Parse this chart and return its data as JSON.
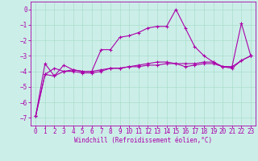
{
  "xlabel": "Windchill (Refroidissement éolien,°C)",
  "background_color": "#cceee8",
  "grid_color": "#aaddcc",
  "line_color": "#aa00aa",
  "x_hours": [
    0,
    1,
    2,
    3,
    4,
    5,
    6,
    7,
    8,
    9,
    10,
    11,
    12,
    13,
    14,
    15,
    16,
    17,
    18,
    19,
    20,
    21,
    22,
    23
  ],
  "series1": [
    -6.9,
    -3.5,
    -4.3,
    -3.6,
    -3.9,
    -4.0,
    -4.0,
    -2.6,
    -2.6,
    -1.8,
    -1.7,
    -1.5,
    -1.2,
    -1.1,
    -1.1,
    0.0,
    -1.2,
    -2.4,
    -3.0,
    -3.4,
    -3.7,
    -3.7,
    -0.9,
    -3.0
  ],
  "series2": [
    -6.9,
    -4.2,
    -3.8,
    -4.0,
    -3.9,
    -4.0,
    -4.0,
    -3.9,
    -3.8,
    -3.8,
    -3.7,
    -3.7,
    -3.6,
    -3.6,
    -3.5,
    -3.5,
    -3.5,
    -3.5,
    -3.4,
    -3.4,
    -3.7,
    -3.7,
    -3.3,
    -3.0
  ],
  "series3": [
    -6.9,
    -4.2,
    -4.3,
    -4.0,
    -4.0,
    -4.1,
    -4.1,
    -4.0,
    -3.8,
    -3.8,
    -3.7,
    -3.6,
    -3.5,
    -3.4,
    -3.4,
    -3.5,
    -3.7,
    -3.6,
    -3.5,
    -3.5,
    -3.7,
    -3.8,
    -3.3,
    -3.0
  ],
  "ylim": [
    -7.5,
    0.5
  ],
  "yticks": [
    0,
    -1,
    -2,
    -3,
    -4,
    -5,
    -6,
    -7
  ],
  "xticks": [
    0,
    1,
    2,
    3,
    4,
    5,
    6,
    7,
    8,
    9,
    10,
    11,
    12,
    13,
    14,
    15,
    16,
    17,
    18,
    19,
    20,
    21,
    22,
    23
  ],
  "marker": "+",
  "markersize": 3,
  "linewidth": 0.8,
  "tick_fontsize": 5.5,
  "xlabel_fontsize": 5.5
}
